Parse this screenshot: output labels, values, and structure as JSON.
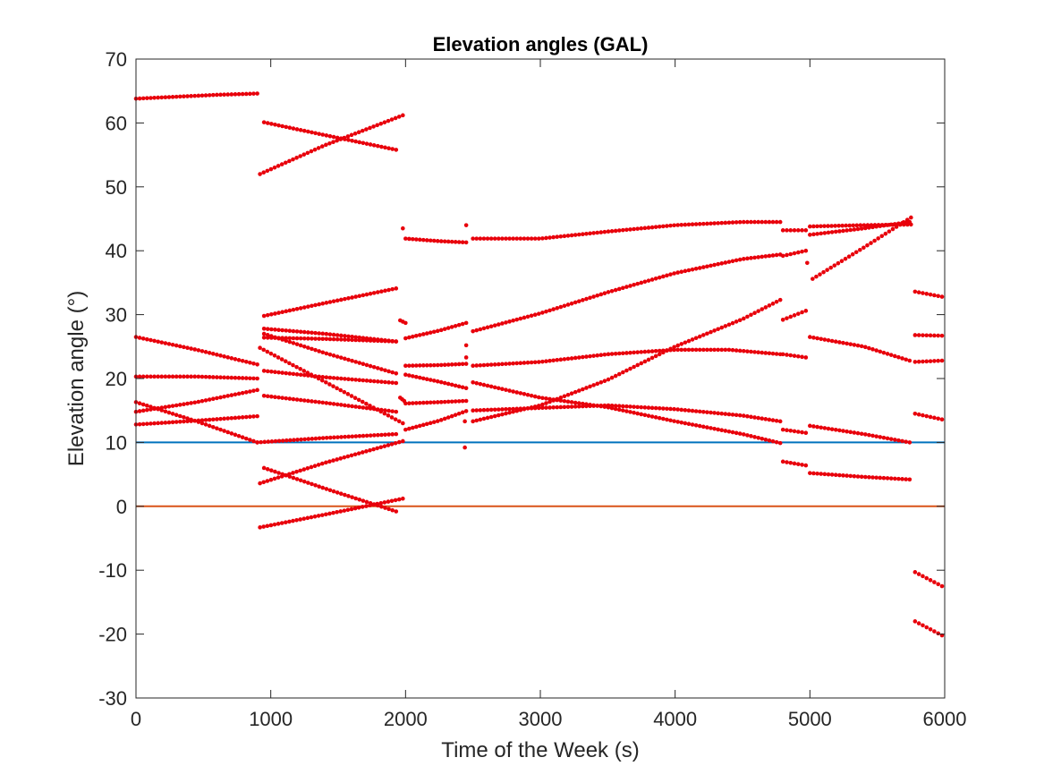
{
  "chart_data": {
    "type": "scatter",
    "title": "Elevation angles (GAL)",
    "xlabel": "Time of the Week (s)",
    "ylabel": "Elevation angle (°)",
    "xlim": [
      0,
      6000
    ],
    "ylim": [
      -30,
      70
    ],
    "xticks": [
      0,
      1000,
      2000,
      3000,
      4000,
      5000,
      6000
    ],
    "yticks": [
      -30,
      -20,
      -10,
      0,
      10,
      20,
      30,
      40,
      50,
      60,
      70
    ],
    "grid": false,
    "legend": "none",
    "colors": {
      "points": "#e8000b",
      "mask_line": "#0072bd",
      "horizon_line": "#d95319",
      "axes": "#262626"
    },
    "reference_lines": [
      {
        "y": 10,
        "color": "#0072bd"
      },
      {
        "y": 0,
        "color": "#d95319"
      }
    ],
    "series": [
      {
        "points": [
          [
            0,
            63.8
          ],
          [
            300,
            64.1
          ],
          [
            600,
            64.4
          ],
          [
            900,
            64.6
          ]
        ]
      },
      {
        "points": [
          [
            950,
            60.1
          ],
          [
            1400,
            58.1
          ],
          [
            1930,
            55.8
          ]
        ]
      },
      {
        "points": [
          [
            920,
            52.0
          ],
          [
            1400,
            56.5
          ],
          [
            1980,
            61.2
          ]
        ]
      },
      {
        "points": [
          [
            1980,
            43.5
          ]
        ]
      },
      {
        "points": [
          [
            2000,
            41.9
          ],
          [
            2250,
            41.5
          ],
          [
            2450,
            41.3
          ]
        ]
      },
      {
        "points": [
          [
            2450,
            44.0
          ]
        ]
      },
      {
        "points": [
          [
            2500,
            41.9
          ],
          [
            3000,
            41.9
          ],
          [
            3500,
            43.0
          ],
          [
            4000,
            44.0
          ],
          [
            4500,
            44.5
          ],
          [
            4780,
            44.5
          ]
        ]
      },
      {
        "points": [
          [
            4800,
            43.2
          ],
          [
            4970,
            43.2
          ]
        ]
      },
      {
        "points": [
          [
            5000,
            43.8
          ],
          [
            5400,
            44.0
          ],
          [
            5750,
            44.1
          ]
        ]
      },
      {
        "points": [
          [
            5000,
            42.5
          ],
          [
            5400,
            43.5
          ],
          [
            5740,
            44.5
          ]
        ]
      },
      {
        "points": [
          [
            4980,
            38.1
          ]
        ]
      },
      {
        "points": [
          [
            5020,
            35.6
          ],
          [
            5400,
            40.5
          ],
          [
            5750,
            45.2
          ]
        ]
      },
      {
        "points": [
          [
            4800,
            39.2
          ],
          [
            4970,
            40.0
          ]
        ]
      },
      {
        "points": [
          [
            2500,
            27.4
          ],
          [
            3000,
            30.2
          ],
          [
            3500,
            33.5
          ],
          [
            4000,
            36.5
          ],
          [
            4500,
            38.7
          ],
          [
            4780,
            39.4
          ]
        ]
      },
      {
        "points": [
          [
            2450,
            25.2
          ]
        ]
      },
      {
        "points": [
          [
            2450,
            23.3
          ]
        ]
      },
      {
        "points": [
          [
            2000,
            26.3
          ],
          [
            2250,
            27.5
          ],
          [
            2450,
            28.7
          ]
        ]
      },
      {
        "points": [
          [
            1960,
            29.1
          ],
          [
            2000,
            28.7
          ]
        ]
      },
      {
        "points": [
          [
            950,
            29.8
          ],
          [
            1400,
            31.8
          ],
          [
            1930,
            34.1
          ]
        ]
      },
      {
        "points": [
          [
            950,
            27.8
          ],
          [
            1400,
            27.0
          ],
          [
            1930,
            25.8
          ]
        ]
      },
      {
        "points": [
          [
            950,
            27.0
          ],
          [
            1400,
            24.0
          ],
          [
            1930,
            20.8
          ]
        ]
      },
      {
        "points": [
          [
            950,
            26.4
          ],
          [
            1400,
            26.2
          ],
          [
            1930,
            25.8
          ]
        ]
      },
      {
        "points": [
          [
            920,
            24.8
          ],
          [
            1400,
            19.5
          ],
          [
            1980,
            13.0
          ]
        ]
      },
      {
        "points": [
          [
            950,
            21.2
          ],
          [
            1400,
            20.2
          ],
          [
            1930,
            19.3
          ]
        ]
      },
      {
        "points": [
          [
            950,
            17.3
          ],
          [
            1400,
            16.2
          ],
          [
            1930,
            14.8
          ]
        ]
      },
      {
        "points": [
          [
            1960,
            17.0
          ],
          [
            1990,
            16.5
          ]
        ]
      },
      {
        "points": [
          [
            0,
            26.5
          ],
          [
            450,
            24.5
          ],
          [
            900,
            22.2
          ]
        ]
      },
      {
        "points": [
          [
            0,
            20.3
          ],
          [
            450,
            20.3
          ],
          [
            900,
            20.0
          ]
        ]
      },
      {
        "points": [
          [
            0,
            14.8
          ],
          [
            450,
            16.3
          ],
          [
            900,
            18.2
          ]
        ]
      },
      {
        "points": [
          [
            0,
            16.3
          ],
          [
            450,
            13.3
          ],
          [
            900,
            10.0
          ]
        ]
      },
      {
        "points": [
          [
            0,
            12.8
          ],
          [
            450,
            13.4
          ],
          [
            900,
            14.1
          ]
        ]
      },
      {
        "points": [
          [
            900,
            10.0
          ],
          [
            1400,
            10.7
          ],
          [
            1930,
            11.3
          ]
        ]
      },
      {
        "points": [
          [
            950,
            6.0
          ],
          [
            1400,
            2.8
          ],
          [
            1930,
            -0.8
          ]
        ]
      },
      {
        "points": [
          [
            920,
            3.6
          ],
          [
            1400,
            6.8
          ],
          [
            1980,
            10.2
          ]
        ]
      },
      {
        "points": [
          [
            920,
            -3.3
          ],
          [
            1400,
            -1.3
          ],
          [
            1980,
            1.2
          ]
        ]
      },
      {
        "points": [
          [
            2000,
            22.0
          ],
          [
            2250,
            22.1
          ],
          [
            2450,
            22.3
          ]
        ]
      },
      {
        "points": [
          [
            2000,
            20.6
          ],
          [
            2250,
            19.5
          ],
          [
            2450,
            18.5
          ]
        ]
      },
      {
        "points": [
          [
            2000,
            16.1
          ],
          [
            2250,
            16.3
          ],
          [
            2450,
            16.5
          ]
        ]
      },
      {
        "points": [
          [
            2000,
            12.0
          ],
          [
            2250,
            13.4
          ],
          [
            2450,
            14.9
          ]
        ]
      },
      {
        "points": [
          [
            2440,
            9.2
          ]
        ]
      },
      {
        "points": [
          [
            2440,
            13.3
          ]
        ]
      },
      {
        "points": [
          [
            2500,
            22.0
          ],
          [
            3000,
            22.6
          ],
          [
            3500,
            23.8
          ],
          [
            4000,
            24.5
          ],
          [
            4400,
            24.5
          ],
          [
            4780,
            23.8
          ]
        ]
      },
      {
        "points": [
          [
            2500,
            19.4
          ],
          [
            3000,
            17.0
          ],
          [
            3500,
            15.5
          ],
          [
            4000,
            13.3
          ],
          [
            4500,
            11.3
          ],
          [
            4780,
            9.9
          ]
        ]
      },
      {
        "points": [
          [
            2500,
            15.0
          ],
          [
            3000,
            15.4
          ],
          [
            3500,
            15.8
          ],
          [
            4000,
            15.2
          ],
          [
            4500,
            14.2
          ],
          [
            4780,
            13.3
          ]
        ]
      },
      {
        "points": [
          [
            2500,
            13.3
          ],
          [
            3000,
            15.8
          ],
          [
            3500,
            19.8
          ],
          [
            4000,
            25.0
          ],
          [
            4500,
            29.3
          ],
          [
            4780,
            32.3
          ]
        ]
      },
      {
        "points": [
          [
            4800,
            29.2
          ],
          [
            4970,
            30.6
          ]
        ]
      },
      {
        "points": [
          [
            4800,
            23.8
          ],
          [
            4970,
            23.3
          ]
        ]
      },
      {
        "points": [
          [
            4800,
            12.0
          ],
          [
            4970,
            11.5
          ]
        ]
      },
      {
        "points": [
          [
            4800,
            7.0
          ],
          [
            4970,
            6.4
          ]
        ]
      },
      {
        "points": [
          [
            5000,
            26.5
          ],
          [
            5400,
            25.0
          ],
          [
            5740,
            22.8
          ]
        ]
      },
      {
        "points": [
          [
            5000,
            12.6
          ],
          [
            5400,
            11.3
          ],
          [
            5740,
            10.0
          ]
        ]
      },
      {
        "points": [
          [
            5000,
            5.2
          ],
          [
            5400,
            4.6
          ],
          [
            5740,
            4.2
          ]
        ]
      },
      {
        "points": [
          [
            5780,
            33.6
          ],
          [
            5980,
            32.8
          ]
        ]
      },
      {
        "points": [
          [
            5780,
            26.8
          ],
          [
            5980,
            26.7
          ]
        ]
      },
      {
        "points": [
          [
            5780,
            22.6
          ],
          [
            5980,
            22.8
          ]
        ]
      },
      {
        "points": [
          [
            5780,
            14.5
          ],
          [
            5980,
            13.6
          ]
        ]
      },
      {
        "points": [
          [
            5780,
            -10.3
          ],
          [
            5980,
            -12.5
          ]
        ]
      },
      {
        "points": [
          [
            5780,
            -18.0
          ],
          [
            5980,
            -20.2
          ]
        ]
      }
    ]
  }
}
